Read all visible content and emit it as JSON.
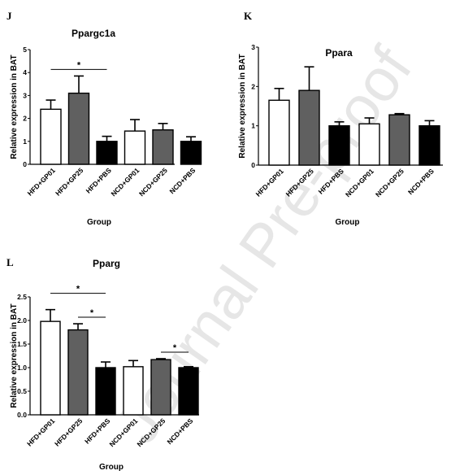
{
  "watermark": "Journal Pre-proof",
  "colors": {
    "white": "#ffffff",
    "gray": "#606060",
    "black": "#000000"
  },
  "chart_data": [
    {
      "panel": "J",
      "type": "bar",
      "title": "Ppargc1a",
      "xlabel": "Group",
      "ylabel": "Relative expression in BAT",
      "ylim": [
        0,
        5
      ],
      "yticks": [
        "0",
        "1",
        "2",
        "3",
        "4",
        "5"
      ],
      "categories": [
        "HFD+GP01",
        "HFD+GP25",
        "HFD+PBS",
        "NCD+GP01",
        "NCD+GP25",
        "NCD+PBS"
      ],
      "values": [
        2.4,
        3.1,
        1.0,
        1.45,
        1.5,
        1.0
      ],
      "errors": [
        0.4,
        0.75,
        0.22,
        0.5,
        0.28,
        0.2
      ],
      "bar_colors": [
        "white",
        "gray",
        "black",
        "white",
        "gray",
        "black"
      ],
      "significance": [
        {
          "from": 0,
          "to": 2,
          "label": "*"
        }
      ]
    },
    {
      "panel": "K",
      "type": "bar",
      "title": "Ppara",
      "xlabel": "Group",
      "ylabel": "Relative expression in BAT",
      "ylim": [
        0,
        3
      ],
      "yticks": [
        "0",
        "1",
        "2",
        "3"
      ],
      "categories": [
        "HFD+GP01",
        "HFD+GP25",
        "HFD+PBS",
        "NCD+GP01",
        "NCD+GP25",
        "NCD+PBS"
      ],
      "values": [
        1.65,
        1.9,
        1.0,
        1.05,
        1.28,
        1.0
      ],
      "errors": [
        0.3,
        0.6,
        0.1,
        0.15,
        0.03,
        0.13
      ],
      "bar_colors": [
        "white",
        "gray",
        "black",
        "white",
        "gray",
        "black"
      ],
      "significance": []
    },
    {
      "panel": "L",
      "type": "bar",
      "title": "Pparg",
      "xlabel": "Group",
      "ylabel": "Relative expression in BAT",
      "ylim": [
        0,
        2.5
      ],
      "yticks": [
        "0.0",
        "0.5",
        "1.0",
        "1.5",
        "2.0",
        "2.5"
      ],
      "categories": [
        "HFD+GP01",
        "HFD+GP25",
        "HFD+PBS",
        "NCD+GP01",
        "NCD+GP25",
        "NCD+PBS"
      ],
      "values": [
        1.98,
        1.8,
        1.0,
        1.02,
        1.17,
        1.0
      ],
      "errors": [
        0.25,
        0.13,
        0.12,
        0.13,
        0.02,
        0.02
      ],
      "bar_colors": [
        "white",
        "gray",
        "black",
        "white",
        "gray",
        "black"
      ],
      "significance": [
        {
          "from": 0,
          "to": 2,
          "label": "*"
        },
        {
          "from": 1,
          "to": 2,
          "label": "*"
        },
        {
          "from": 4,
          "to": 5,
          "label": "*"
        }
      ]
    }
  ]
}
